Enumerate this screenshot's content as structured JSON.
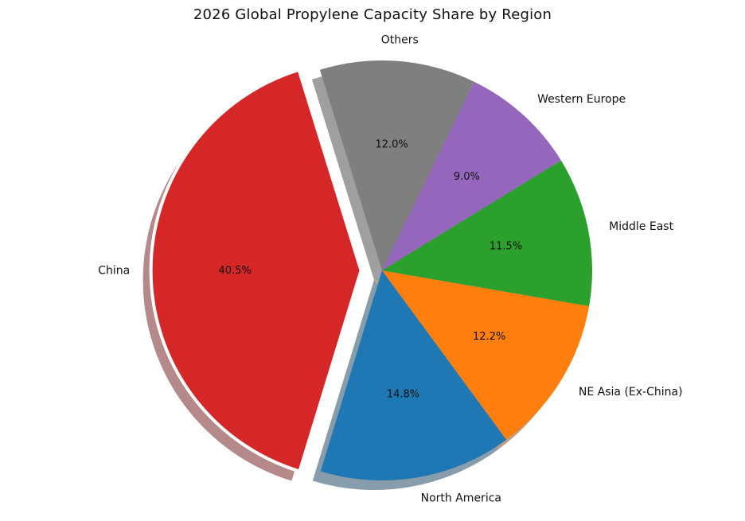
{
  "chart_data": {
    "type": "pie",
    "title": "2026 Global Propylene Capacity Share by Region",
    "slices": [
      {
        "label": "North America",
        "value": 14.8,
        "pct_label": "14.8%",
        "color": "#1f77b4",
        "explode": false
      },
      {
        "label": "NE Asia (Ex-China)",
        "value": 12.2,
        "pct_label": "12.2%",
        "color": "#ff7f0e",
        "explode": false
      },
      {
        "label": "Middle East",
        "value": 11.5,
        "pct_label": "11.5%",
        "color": "#2ca02c",
        "explode": false
      },
      {
        "label": "Western Europe",
        "value": 9.0,
        "pct_label": "9.0%",
        "color": "#9467bd",
        "explode": false
      },
      {
        "label": "Others",
        "value": 12.0,
        "pct_label": "12.0%",
        "color": "#7f7f7f",
        "explode": false
      },
      {
        "label": "China",
        "value": 40.5,
        "pct_label": "40.5%",
        "color": "#d62728",
        "explode": true
      }
    ],
    "shadow": true,
    "legend": "none"
  }
}
